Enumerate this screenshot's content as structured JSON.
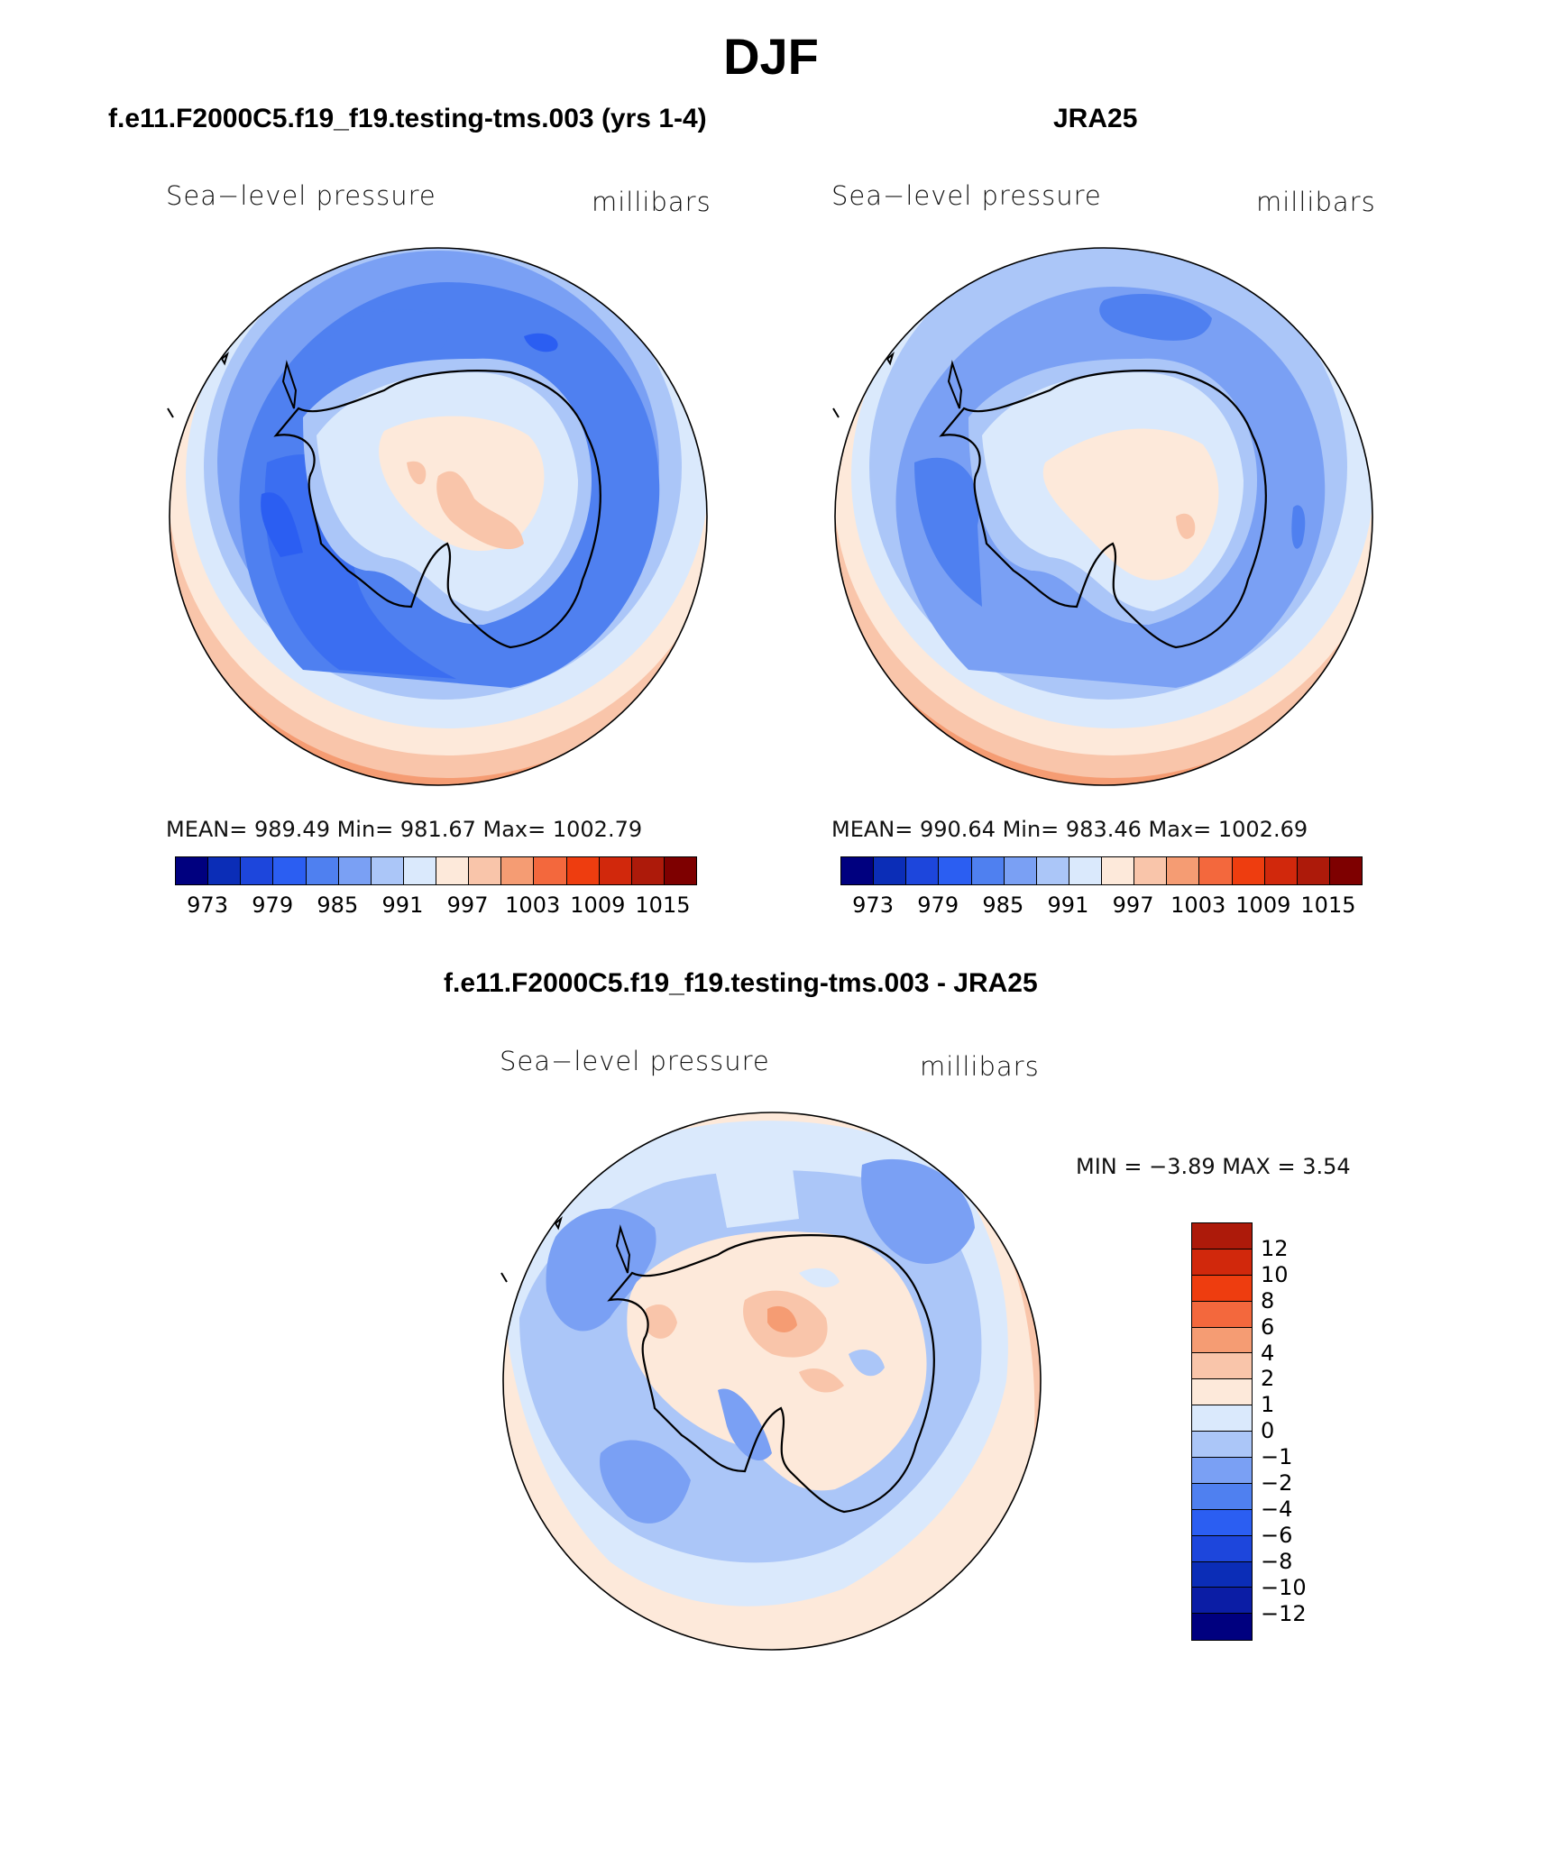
{
  "title": "DJF",
  "colors": {
    "abs_palette": [
      "#00007f",
      "#0b2db7",
      "#1d46dc",
      "#2b5ef2",
      "#4f80f0",
      "#7aa0f4",
      "#abc6f8",
      "#dae9fc",
      "#fde9da",
      "#f9c5aa",
      "#f59c73",
      "#f3683d",
      "#ee3d0f",
      "#d1280c",
      "#ad1a0a",
      "#7e0000"
    ],
    "diff_palette": [
      "#00007f",
      "#0b1da5",
      "#0b2db7",
      "#1d46dc",
      "#2b5ef2",
      "#4f80f0",
      "#7aa0f4",
      "#abc6f8",
      "#dae9fc",
      "#fde9da",
      "#f9c5aa",
      "#f59c73",
      "#f3683d",
      "#ee3d0f",
      "#d1280c",
      "#ad1a0a"
    ],
    "land_outline": "#000000"
  },
  "panels": [
    {
      "id": "model",
      "title": "f.e11.F2000C5.f19_f19.testing-tms.003 (yrs 1-4)",
      "left_label": "Sea−level pressure",
      "right_label": "millibars",
      "stats": "MEAN=  989.49   Min=  981.67   Max=  1002.79",
      "ticks": [
        "973",
        "979",
        "985",
        "991",
        "997",
        "1003",
        "1009",
        "1015"
      ]
    },
    {
      "id": "obs",
      "title": "JRA25",
      "left_label": "Sea−level pressure",
      "right_label": "millibars",
      "stats": "MEAN=  990.64   Min=  983.46   Max=  1002.69",
      "ticks": [
        "973",
        "979",
        "985",
        "991",
        "997",
        "1003",
        "1009",
        "1015"
      ]
    },
    {
      "id": "diff",
      "title": "f.e11.F2000C5.f19_f19.testing-tms.003 - JRA25",
      "left_label": "Sea−level pressure",
      "right_label": "millibars",
      "stats": "MIN =   −3.89  MAX =     3.54",
      "ticks": [
        "12",
        "10",
        "8",
        "6",
        "4",
        "2",
        "1",
        "0",
        "−1",
        "−2",
        "−4",
        "−6",
        "−8",
        "−10",
        "−12"
      ]
    }
  ]
}
